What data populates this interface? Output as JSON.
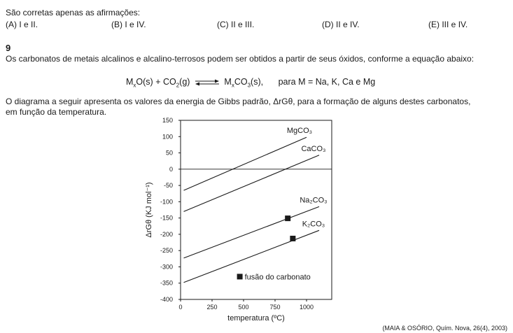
{
  "question_intro": {
    "statement": "São corretas apenas as afirmações:",
    "options": [
      {
        "letter": "(A)",
        "text": "I e II."
      },
      {
        "letter": "(B)",
        "text": "I e IV."
      },
      {
        "letter": "(C)",
        "text": "II e III."
      },
      {
        "letter": "(D)",
        "text": "II e IV."
      },
      {
        "letter": "(E)",
        "text": "III e IV."
      }
    ]
  },
  "question": {
    "number": "9",
    "text": "Os carbonatos de metais alcalinos e alcalino-terrosos podem ser obtidos a partir de seus óxidos, conforme a equação abaixo:",
    "equation": {
      "reactant1": "M",
      "reactant1_sub": "x",
      "reactant1_rest": "O(s) + CO",
      "co2_sub": "2",
      "co2_rest": "(g)",
      "product": "M",
      "product_sub": "x",
      "product_mid": "CO",
      "product_sub2": "3",
      "product_rest": "(s),",
      "condition": "para M = Na, K, Ca e Mg"
    },
    "diagram_text_line1": "O diagrama a seguir apresenta os valores da energia de Gibbs padrão, ΔrGθ, para a formação de alguns destes carbonatos,",
    "diagram_text_line2": "em função da temperatura."
  },
  "chart_data": {
    "type": "line",
    "title": "",
    "xlabel": "temperatura (ºC)",
    "ylabel": "ΔrGθ (KJ mol⁻¹)",
    "xlim": [
      0,
      1200
    ],
    "ylim": [
      -400,
      150
    ],
    "xticks": [
      "0",
      "250",
      "500",
      "750",
      "1000"
    ],
    "xtick_values": [
      0,
      250,
      500,
      750,
      1000
    ],
    "yticks": [
      "150",
      "100",
      "50",
      "0",
      "-50",
      "-100",
      "-150",
      "-200",
      "-250",
      "-300",
      "-350",
      "-400"
    ],
    "ytick_values": [
      150,
      100,
      50,
      0,
      -50,
      -100,
      -150,
      -200,
      -250,
      -300,
      -350,
      -400
    ],
    "zero_line": true,
    "series": [
      {
        "name": "MgCO₃",
        "x": [
          25,
          1000
        ],
        "y": [
          -65,
          98
        ]
      },
      {
        "name": "CaCO₃",
        "x": [
          25,
          1100
        ],
        "y": [
          -130,
          43
        ]
      },
      {
        "name": "Na₂CO₃",
        "x": [
          25,
          1100
        ],
        "y": [
          -273,
          -115
        ]
      },
      {
        "name": "K₂CO₃",
        "x": [
          25,
          1100
        ],
        "y": [
          -348,
          -188
        ]
      }
    ],
    "markers": [
      {
        "x": 851,
        "y": -151
      },
      {
        "x": 891,
        "y": -213
      }
    ],
    "legend": {
      "label": "fusão do carbonato",
      "placement": "bottom-right"
    }
  },
  "source": "(MAIA & OSÓRIO, Quím. Nova, 26(4), 2003)"
}
